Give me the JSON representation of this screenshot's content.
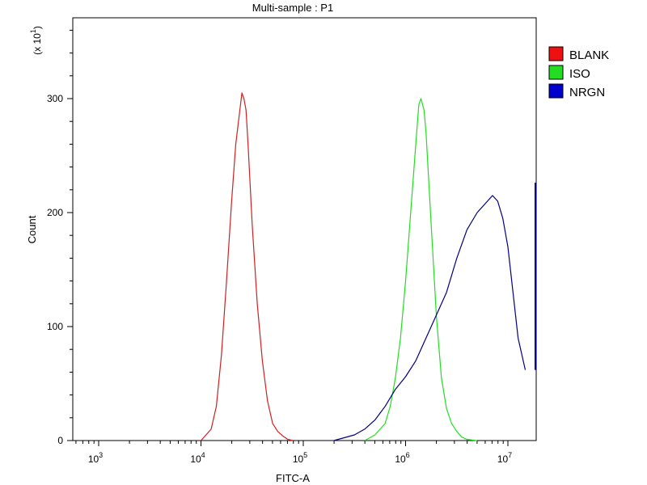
{
  "chart_data": {
    "type": "line",
    "title": "Multi-sample : P1",
    "xlabel": "FITC-A",
    "ylabel": "Count",
    "y_multiplier_label": "(x 10",
    "y_multiplier_exp": "1",
    "y_multiplier_close": ")",
    "x_scale": "log",
    "xlim_log10": [
      2.7,
      7.2
    ],
    "ylim": [
      0,
      38
    ],
    "x_ticks": [
      {
        "value": 3,
        "base": "10",
        "exp": "3"
      },
      {
        "value": 4,
        "base": "10",
        "exp": "4"
      },
      {
        "value": 5,
        "base": "10",
        "exp": "5"
      },
      {
        "value": 6,
        "base": "10",
        "exp": "6"
      },
      {
        "value": 7,
        "base": "10",
        "exp": "7"
      }
    ],
    "y_ticks": [
      {
        "value": 0,
        "label": "0"
      },
      {
        "value": 10,
        "label": "100"
      },
      {
        "value": 20,
        "label": "200"
      },
      {
        "value": 30,
        "label": "300"
      }
    ],
    "grid": false,
    "legend_position": "right",
    "series": [
      {
        "name": "BLANK",
        "color": "#cc2222",
        "legend_color": "#ee1111",
        "x_log10": [
          4.0,
          4.1,
          4.15,
          4.2,
          4.25,
          4.3,
          4.34,
          4.38,
          4.4,
          4.42,
          4.44,
          4.46,
          4.5,
          4.55,
          4.6,
          4.65,
          4.7,
          4.75,
          4.8,
          4.85,
          4.9
        ],
        "y": [
          0,
          1,
          3,
          7.5,
          14,
          21,
          26,
          29,
          30.5,
          30,
          29,
          26,
          19,
          12,
          7,
          3.5,
          1.5,
          0.8,
          0.4,
          0.1,
          0
        ]
      },
      {
        "name": "ISO",
        "color": "#22dd22",
        "legend_color": "#22dd22",
        "x_log10": [
          5.6,
          5.7,
          5.8,
          5.85,
          5.9,
          5.95,
          6.0,
          6.05,
          6.1,
          6.13,
          6.15,
          6.18,
          6.2,
          6.25,
          6.3,
          6.35,
          6.4,
          6.45,
          6.5,
          6.55,
          6.6,
          6.7
        ],
        "y": [
          0,
          0.5,
          1.5,
          3,
          5.5,
          9,
          14,
          20,
          26,
          29.5,
          30,
          29,
          27,
          19,
          11,
          5.5,
          2.8,
          1.5,
          0.8,
          0.3,
          0.1,
          0
        ]
      },
      {
        "name": "NRGN",
        "color": "#000080",
        "legend_color": "#0000cc",
        "x_log10": [
          5.3,
          5.5,
          5.6,
          5.7,
          5.8,
          5.9,
          6.0,
          6.1,
          6.2,
          6.3,
          6.4,
          6.5,
          6.6,
          6.7,
          6.8,
          6.85,
          6.9,
          6.95,
          7.0,
          7.05,
          7.1,
          7.17
        ],
        "y": [
          0,
          0.5,
          1,
          1.8,
          3,
          4.5,
          5.6,
          7,
          9,
          11,
          13,
          16,
          18.5,
          20,
          21,
          21.5,
          21,
          19.5,
          17,
          13,
          9,
          6.2
        ]
      }
    ]
  }
}
